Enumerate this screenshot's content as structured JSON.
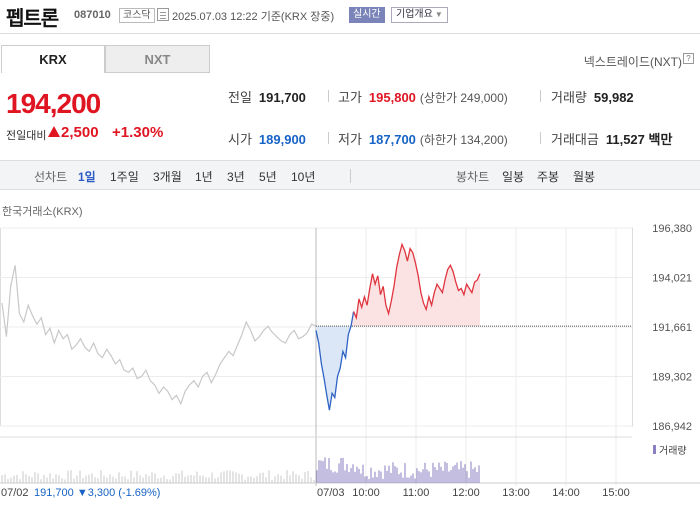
{
  "header": {
    "stock_name": "펩트론",
    "stock_code": "087010",
    "market_badge": "코스닥",
    "datetime": "2025.07.03 12:22 기준(KRX 장중)",
    "live_badge": "실시간",
    "company_button": "기업개요"
  },
  "tabs": {
    "krx": "KRX",
    "nxt": "NXT",
    "nxt_label": "넥스트레이드(NXT)",
    "help": "?"
  },
  "price": {
    "current": "194,200",
    "change_label": "전일대비",
    "change_value": "2,500",
    "change_pct": "+1.30%"
  },
  "stats": {
    "prev_label": "전일",
    "prev_value": "191,700",
    "high_label": "고가",
    "high_value": "195,800",
    "upper_limit": "(상한가 249,000)",
    "volume_label": "거래량",
    "volume_value": "59,982",
    "open_label": "시가",
    "open_value": "189,900",
    "low_label": "저가",
    "low_value": "187,700",
    "lower_limit": "(하한가 134,200)",
    "amount_label": "거래대금",
    "amount_value": "11,527 백만"
  },
  "toolbar": {
    "line_label": "선차트",
    "periods": [
      "1일",
      "1주일",
      "3개월",
      "1년",
      "3년",
      "5년",
      "10년"
    ],
    "candle_label": "봉차트",
    "candles": [
      "일봉",
      "주봉",
      "월봉"
    ]
  },
  "chart_data": {
    "type": "line",
    "exchange_label": "한국거래소(KRX)",
    "y_ticks": [
      "196,380",
      "194,021",
      "191,661",
      "189,302",
      "186,942"
    ],
    "ylim": [
      186942,
      196380
    ],
    "reference_line": 191700,
    "x_ticks": [
      "07/03",
      "10:00",
      "11:00",
      "12:00",
      "13:00",
      "14:00",
      "15:00"
    ],
    "x_left_label": "07/02",
    "prev_day_summary": {
      "price": "191,700",
      "change": "▼3,300",
      "pct": "(-1.69%)"
    },
    "volume_legend": "거래량",
    "colors": {
      "up": "#e0353f",
      "down": "#2f64c4",
      "prev": "#c8c8c8",
      "up_fill": "#fbe3e4",
      "down_fill": "#dbe6f6"
    },
    "prev_day_series": [
      192800,
      191200,
      193600,
      194600,
      192300,
      191900,
      192700,
      192200,
      191800,
      192100,
      191300,
      191600,
      190900,
      191500,
      191100,
      191300,
      190600,
      190800,
      191100,
      190700,
      190500,
      190900,
      190400,
      190200,
      190600,
      190300,
      189900,
      190100,
      189600,
      189500,
      189700,
      189200,
      189300,
      189600,
      189100,
      188900,
      188500,
      188800,
      188600,
      188200,
      188400,
      188000,
      188600,
      188900,
      189100,
      188800,
      189300,
      189500,
      189000,
      189400,
      189900,
      190200,
      190500,
      190300,
      190800,
      191300,
      191900,
      191500,
      191000,
      191200,
      191500,
      191700,
      191400,
      191200,
      191000,
      190900,
      191300,
      191500,
      191100,
      191200,
      191400,
      191800,
      191700
    ],
    "today_series": [
      191500,
      190900,
      189900,
      189200,
      188400,
      187700,
      188500,
      188300,
      189300,
      189700,
      190500,
      190200,
      191300,
      191700,
      192400,
      192100,
      193000,
      192600,
      193100,
      192700,
      193500,
      194200,
      193700,
      194100,
      193200,
      193600,
      192700,
      192300,
      192900,
      193600,
      194500,
      195100,
      195600,
      195300,
      194800,
      195400,
      195200,
      194700,
      194100,
      193300,
      192800,
      192500,
      193100,
      192700,
      193300,
      193700,
      193500,
      193300,
      193900,
      194400,
      194600,
      194300,
      193800,
      193400,
      193500,
      193200,
      193700,
      193500,
      193300,
      193800,
      193900,
      194200
    ]
  }
}
